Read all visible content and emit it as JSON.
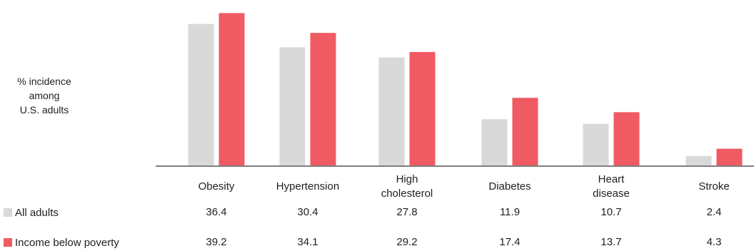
{
  "chart_data": {
    "type": "bar",
    "ylabel_lines": [
      "% incidence",
      "among",
      "U.S. adults"
    ],
    "categories": [
      [
        "Obesity"
      ],
      [
        "Hypertension"
      ],
      [
        "High",
        "cholesterol"
      ],
      [
        "Diabetes"
      ],
      [
        "Heart",
        "disease"
      ],
      [
        "Stroke"
      ]
    ],
    "series": [
      {
        "name": "All adults",
        "color": "#d9d9d9",
        "values": [
          36.4,
          30.4,
          27.8,
          11.9,
          10.7,
          2.4
        ],
        "labels": [
          "36.4",
          "30.4",
          "27.8",
          "11.9",
          "10.7",
          "2.4"
        ]
      },
      {
        "name": "Income below poverty",
        "color": "#f05b63",
        "values": [
          39.2,
          34.1,
          29.2,
          17.4,
          13.7,
          4.3
        ],
        "labels": [
          "39.2",
          "34.1",
          "29.2",
          "17.4",
          "13.7",
          "4.3"
        ]
      }
    ],
    "ylim": [
      0,
      40
    ],
    "grid": false,
    "legend_position": "bottom-left table",
    "baseline_color": "#555555"
  }
}
